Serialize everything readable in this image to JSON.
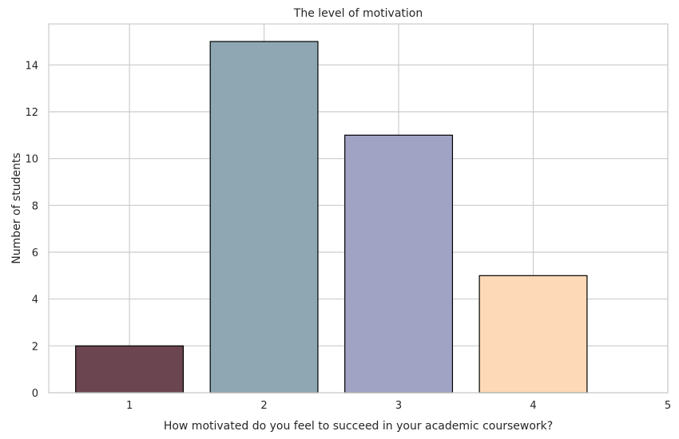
{
  "chart_data": {
    "type": "bar",
    "title": "The level of motivation",
    "xlabel": "How motivated do you feel to succeed in your academic coursework?",
    "ylabel": "Number of students",
    "categories": [
      1,
      2,
      3,
      4
    ],
    "values": [
      2,
      15,
      11,
      5
    ],
    "colors": [
      "#6b4550",
      "#8ea7b3",
      "#a0a3c4",
      "#fdd9b7"
    ],
    "xlim": [
      0.4,
      5
    ],
    "ylim": [
      0,
      15.75
    ],
    "xticks": [
      1,
      2,
      3,
      4,
      5
    ],
    "yticks": [
      0,
      2,
      4,
      6,
      8,
      10,
      12,
      14
    ],
    "bar_width": 0.8,
    "grid": true
  }
}
